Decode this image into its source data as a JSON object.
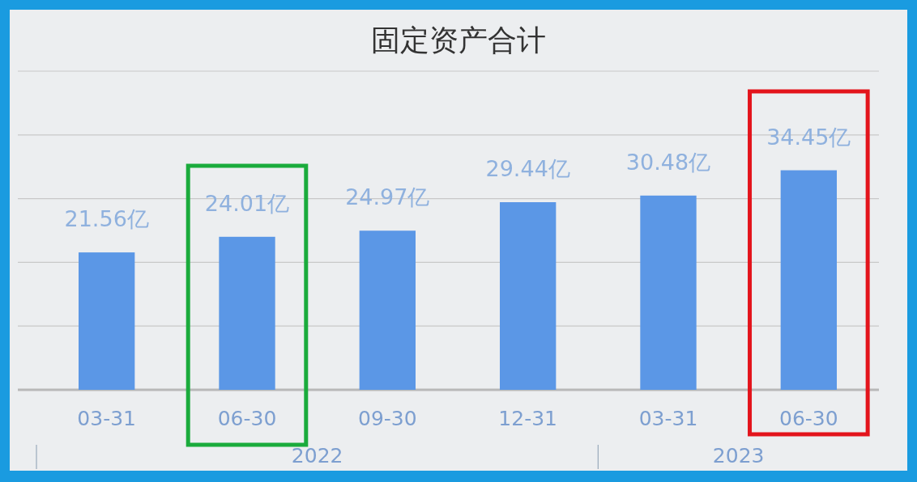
{
  "chart_data": {
    "type": "bar",
    "title": "固定资产合计",
    "categories": [
      "03-31",
      "06-30",
      "09-30",
      "12-31",
      "03-31",
      "06-30"
    ],
    "values": [
      21.56,
      24.01,
      24.97,
      29.44,
      30.48,
      34.45
    ],
    "value_labels": [
      "21.56亿",
      "24.01亿",
      "24.97亿",
      "29.44亿",
      "30.48亿",
      "34.45亿"
    ],
    "color": "#5b97e6",
    "ylim": [
      0,
      50
    ],
    "yticks": [
      {
        "value": 0,
        "label": null
      },
      {
        "value": 10,
        "label": null
      },
      {
        "value": 20,
        "label": null
      },
      {
        "value": 30,
        "label": null
      },
      {
        "value": 40,
        "label": null
      },
      {
        "value": 50,
        "label": null
      }
    ],
    "grid": "y",
    "tick_labels": "x",
    "annotations": [
      "2022",
      "2023"
    ]
  }
}
